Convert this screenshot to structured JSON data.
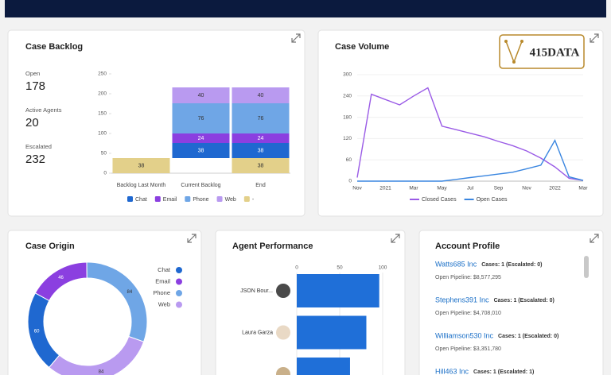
{
  "logo": {
    "text": "415DATA"
  },
  "kpis": [
    {
      "label": "Open",
      "value": 178
    },
    {
      "label": "Active Agents",
      "value": 20
    },
    {
      "label": "Escalated",
      "value": 232
    }
  ],
  "chart_data": [
    {
      "type": "waterfall",
      "title": "Case Backlog",
      "categories": [
        "Backlog Last Month",
        "Current Backlog",
        "End"
      ],
      "series": [
        {
          "name": "Chat",
          "color": "#1f68d0",
          "values": [
            null,
            38,
            38
          ]
        },
        {
          "name": "Email",
          "color": "#8b3fe0",
          "values": [
            null,
            24,
            24
          ]
        },
        {
          "name": "Phone",
          "color": "#6fa6e6",
          "values": [
            null,
            76,
            76
          ]
        },
        {
          "name": "Web",
          "color": "#b99af0",
          "values": [
            null,
            40,
            40
          ]
        },
        {
          "name": "-",
          "color": "#e3d08a",
          "values": [
            38,
            null,
            38
          ]
        }
      ],
      "ylim": [
        0,
        250
      ],
      "yticks": [
        0,
        50,
        100,
        150,
        200,
        250
      ],
      "legend": "bottom"
    },
    {
      "type": "line",
      "title": "Case Volume",
      "categories": [
        "Nov",
        null,
        "2021",
        null,
        "Mar",
        null,
        "May",
        null,
        "Jul",
        null,
        "Sep",
        null,
        "Nov",
        null,
        "2022",
        null,
        "Mar"
      ],
      "series": [
        {
          "name": "Closed Cases",
          "color": "#9a5be6",
          "values": [
            10,
            245,
            230,
            215,
            240,
            263,
            155,
            145,
            135,
            125,
            112,
            100,
            85,
            65,
            40,
            8,
            2
          ]
        },
        {
          "name": "Open Cases",
          "color": "#3a86e0",
          "values": [
            0,
            0,
            0,
            0,
            0,
            0,
            0,
            5,
            10,
            15,
            20,
            25,
            35,
            45,
            115,
            12,
            2
          ]
        }
      ],
      "ylim": [
        0,
        300
      ],
      "yticks": [
        0,
        60,
        120,
        180,
        240,
        300
      ],
      "grid": true,
      "legend": "bottom"
    },
    {
      "type": "donut",
      "title": "Case Origin",
      "categories": [
        "Chat",
        "Email",
        "Phone",
        "Web"
      ],
      "values": [
        60,
        46,
        84,
        84
      ],
      "colors": [
        "#1f68d0",
        "#8b3fe0",
        "#6fa6e6",
        "#b99af0"
      ],
      "legend": "right"
    },
    {
      "type": "hbar",
      "title": "Agent Performance",
      "categories": [
        "JSON Bour...",
        "Laura Garza",
        null
      ],
      "values": [
        96,
        81,
        62
      ],
      "color": "#1f6fd8",
      "xlim": [
        0,
        100
      ],
      "xticks": [
        0,
        50,
        100
      ],
      "grid": true
    }
  ],
  "account_profile": {
    "title": "Account Profile",
    "accounts": [
      {
        "name": "Watts685 Inc",
        "cases": "Cases: 1 (Escalated: 0)",
        "pipeline": "Open Pipeline: $8,577,295"
      },
      {
        "name": "Stephens391 Inc",
        "cases": "Cases: 1 (Escalated: 0)",
        "pipeline": "Open Pipeline: $4,708,010"
      },
      {
        "name": "Williamson530 Inc",
        "cases": "Cases: 1 (Escalated: 0)",
        "pipeline": "Open Pipeline: $3,351,780"
      },
      {
        "name": "Hill463 Inc",
        "cases": "Cases: 1 (Escalated: 1)"
      }
    ]
  }
}
